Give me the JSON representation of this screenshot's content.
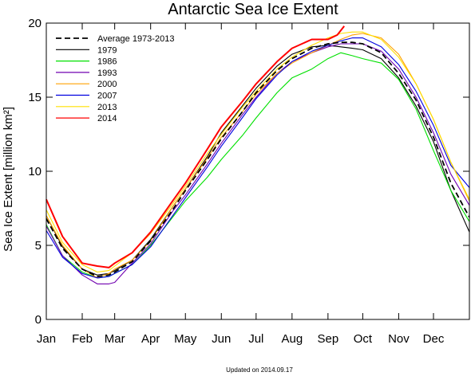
{
  "chart_data": {
    "type": "line",
    "title": "Antarctic Sea Ice Extent",
    "ylabel": "Sea Ice Extent [million km²]",
    "xlabel": "",
    "x_ticks": [
      "Jan",
      "Feb",
      "Mar",
      "Apr",
      "May",
      "Jun",
      "Jul",
      "Aug",
      "Sep",
      "Oct",
      "Nov",
      "Dec"
    ],
    "x_tick_days": [
      1,
      32,
      60,
      91,
      121,
      152,
      182,
      213,
      244,
      274,
      305,
      335
    ],
    "xlim": [
      1,
      366
    ],
    "ylim": [
      0,
      20
    ],
    "y_ticks": [
      0,
      5,
      10,
      15,
      20
    ],
    "grid": false,
    "legend_position": "top-left",
    "footer": "Updated on 2014.09.17",
    "series": [
      {
        "name": "Average 1973-2013",
        "color": "#000000",
        "dashed": true,
        "x": [
          1,
          15,
          32,
          45,
          55,
          60,
          75,
          91,
          110,
          121,
          140,
          152,
          170,
          182,
          200,
          213,
          230,
          244,
          255,
          265,
          274,
          290,
          305,
          320,
          335,
          350,
          366
        ],
        "y": [
          6.8,
          4.8,
          3.4,
          2.9,
          3.0,
          3.2,
          3.9,
          5.3,
          7.4,
          8.7,
          10.8,
          12.2,
          14.0,
          15.3,
          16.8,
          17.6,
          18.3,
          18.6,
          18.7,
          18.7,
          18.6,
          18.0,
          16.6,
          14.8,
          12.3,
          9.2,
          6.9
        ]
      },
      {
        "name": "1979",
        "color": "#000000",
        "dashed": false,
        "x": [
          1,
          15,
          32,
          45,
          55,
          60,
          75,
          91,
          110,
          121,
          140,
          152,
          170,
          182,
          200,
          213,
          230,
          244,
          255,
          265,
          274,
          290,
          305,
          320,
          335,
          350,
          366
        ],
        "y": [
          7.0,
          4.9,
          3.4,
          3.0,
          3.1,
          3.3,
          4.0,
          5.4,
          7.6,
          8.8,
          11.0,
          12.6,
          14.4,
          15.6,
          17.1,
          17.9,
          18.4,
          18.5,
          18.4,
          18.3,
          18.2,
          17.6,
          16.3,
          14.4,
          12.0,
          8.7,
          5.9
        ]
      },
      {
        "name": "1986",
        "color": "#00e000",
        "dashed": false,
        "x": [
          1,
          15,
          32,
          45,
          55,
          60,
          75,
          91,
          110,
          121,
          140,
          152,
          170,
          182,
          200,
          213,
          230,
          244,
          255,
          265,
          274,
          290,
          305,
          320,
          335,
          350,
          366
        ],
        "y": [
          6.4,
          4.3,
          3.2,
          2.8,
          2.9,
          3.1,
          3.7,
          5.0,
          6.9,
          8.0,
          9.6,
          10.8,
          12.4,
          13.6,
          15.3,
          16.3,
          16.9,
          17.6,
          18.0,
          17.8,
          17.6,
          17.3,
          16.2,
          14.2,
          11.4,
          8.7,
          6.6
        ]
      },
      {
        "name": "1993",
        "color": "#7000b0",
        "dashed": false,
        "x": [
          1,
          15,
          32,
          45,
          55,
          60,
          75,
          91,
          110,
          121,
          140,
          152,
          170,
          182,
          200,
          213,
          230,
          244,
          255,
          265,
          274,
          290,
          305,
          320,
          335,
          350,
          366
        ],
        "y": [
          6.3,
          4.3,
          3.0,
          2.4,
          2.4,
          2.5,
          3.8,
          5.1,
          7.3,
          8.4,
          10.5,
          11.9,
          13.8,
          15.0,
          16.6,
          17.4,
          18.0,
          18.4,
          18.6,
          18.6,
          18.6,
          18.1,
          16.9,
          15.0,
          12.6,
          9.8,
          7.7
        ]
      },
      {
        "name": "2000",
        "color": "#ffa000",
        "dashed": false,
        "x": [
          1,
          15,
          32,
          45,
          55,
          60,
          75,
          91,
          110,
          121,
          140,
          152,
          170,
          182,
          200,
          213,
          230,
          244,
          255,
          265,
          274,
          290,
          305,
          320,
          335,
          350,
          366
        ],
        "y": [
          7.0,
          5.0,
          3.4,
          2.8,
          3.1,
          3.4,
          4.0,
          5.3,
          7.6,
          8.8,
          10.9,
          12.3,
          14.0,
          15.2,
          16.6,
          17.3,
          18.0,
          18.5,
          18.9,
          19.2,
          19.3,
          19.0,
          17.9,
          15.9,
          13.5,
          10.6,
          8.0
        ]
      },
      {
        "name": "2007",
        "color": "#0000e0",
        "dashed": false,
        "x": [
          1,
          15,
          32,
          45,
          55,
          60,
          75,
          91,
          110,
          121,
          140,
          152,
          170,
          182,
          200,
          213,
          230,
          244,
          255,
          265,
          274,
          290,
          305,
          320,
          335,
          350,
          366
        ],
        "y": [
          6.0,
          4.2,
          3.1,
          2.8,
          2.9,
          3.1,
          3.7,
          4.9,
          7.0,
          8.2,
          10.3,
          11.7,
          13.6,
          14.9,
          16.5,
          17.4,
          18.1,
          18.5,
          18.8,
          19.0,
          19.0,
          18.4,
          17.2,
          15.4,
          13.1,
          10.4,
          8.9
        ]
      },
      {
        "name": "2013",
        "color": "#ffe000",
        "dashed": false,
        "x": [
          1,
          15,
          32,
          45,
          55,
          60,
          75,
          91,
          110,
          121,
          140,
          152,
          170,
          182,
          200,
          213,
          230,
          244,
          255,
          265,
          274,
          290,
          305,
          320,
          335,
          350,
          366
        ],
        "y": [
          7.4,
          5.2,
          3.7,
          3.2,
          3.3,
          3.6,
          4.5,
          5.8,
          7.8,
          9.0,
          11.2,
          12.5,
          14.3,
          15.4,
          16.9,
          17.7,
          18.5,
          19.0,
          19.3,
          19.4,
          19.4,
          18.9,
          17.7,
          15.9,
          13.5,
          10.6,
          8.1
        ]
      },
      {
        "name": "2014",
        "color": "#ff0000",
        "dashed": false,
        "x": [
          1,
          15,
          32,
          45,
          55,
          60,
          75,
          91,
          110,
          121,
          140,
          152,
          170,
          182,
          200,
          213,
          230,
          244,
          252,
          258
        ],
        "y": [
          8.1,
          5.6,
          3.8,
          3.6,
          3.5,
          3.8,
          4.5,
          5.9,
          8.0,
          9.2,
          11.5,
          13.0,
          14.7,
          15.9,
          17.4,
          18.3,
          18.9,
          18.9,
          19.2,
          19.8
        ]
      }
    ]
  }
}
